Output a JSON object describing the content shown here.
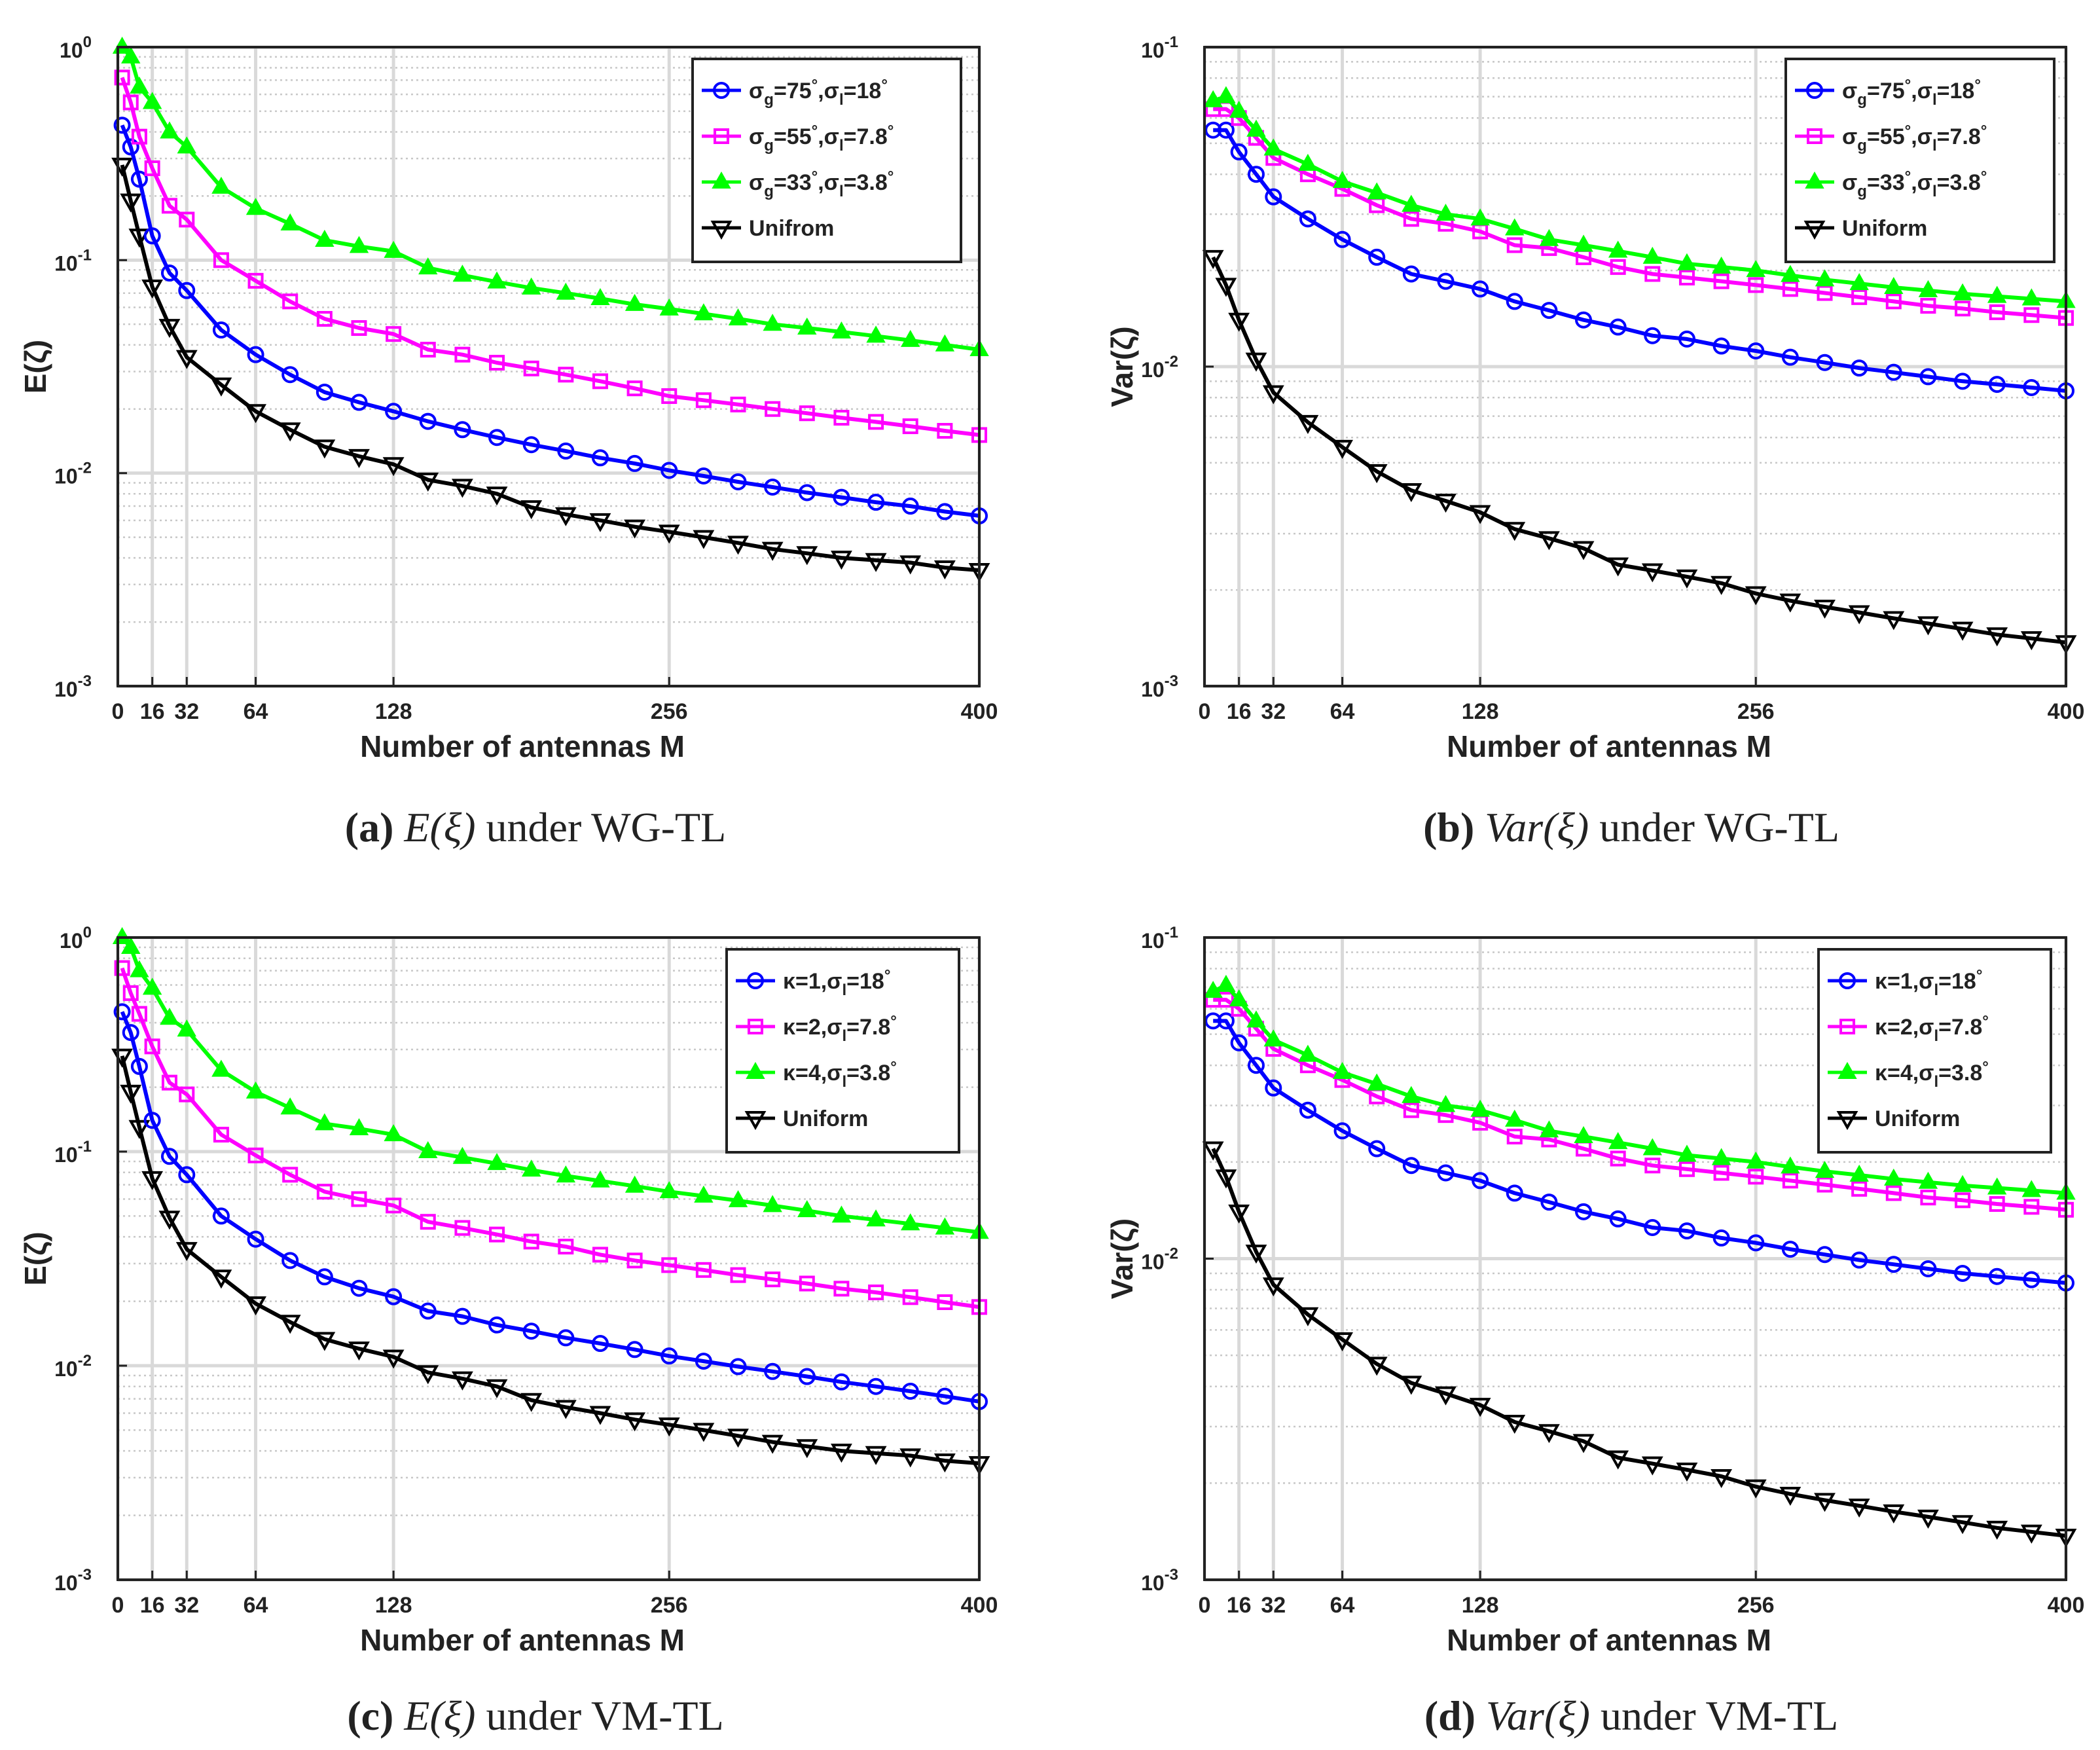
{
  "figure": {
    "captions": [
      {
        "letter": "(a)",
        "expr": "E(ξ)",
        "rest": " under WG-TL"
      },
      {
        "letter": "(b)",
        "expr": "Var(ξ)",
        "rest": " under WG-TL"
      },
      {
        "letter": "(c)",
        "expr": "E(ξ)",
        "rest": " under VM-TL"
      },
      {
        "letter": "(d)",
        "expr": "Var(ξ)",
        "rest": " under VM-TL"
      }
    ]
  },
  "chart_data": [
    {
      "id": "a",
      "type": "line",
      "title": "",
      "xlabel": "Number of antennas M",
      "ylabel": "E(ζ)",
      "yscale": "log",
      "xlim": [
        0,
        400
      ],
      "ylim": [
        0.001,
        1
      ],
      "xticks": [
        0,
        16,
        32,
        64,
        128,
        256,
        400
      ],
      "yticks": [
        {
          "base": "10",
          "exp": "-3"
        },
        {
          "base": "10",
          "exp": "-2"
        },
        {
          "base": "10",
          "exp": "-1"
        },
        {
          "base": "10",
          "exp": "0"
        }
      ],
      "grid": true,
      "legend_position": "top-right",
      "x": [
        2,
        6,
        10,
        16,
        24,
        32,
        48,
        64,
        80,
        96,
        112,
        128,
        144,
        160,
        176,
        192,
        208,
        224,
        240,
        256,
        272,
        288,
        304,
        320,
        336,
        352,
        368,
        384,
        400
      ],
      "series": [
        {
          "name": "σg=75°,σl=18°",
          "label": {
            "s1": "σ",
            "sub1": "g",
            "mid": "=75",
            "deg1": "°",
            "s2": ",σ",
            "sub2": "l",
            "end": "=18",
            "deg2": "°"
          },
          "color": "#0000ff",
          "marker": "circle",
          "values": [
            0.43,
            0.34,
            0.24,
            0.13,
            0.087,
            0.072,
            0.047,
            0.036,
            0.029,
            0.024,
            0.0215,
            0.0195,
            0.0175,
            0.016,
            0.0147,
            0.0136,
            0.0127,
            0.0118,
            0.0111,
            0.0103,
            0.0097,
            0.0091,
            0.0086,
            0.0081,
            0.0077,
            0.0073,
            0.007,
            0.0066,
            0.0063
          ]
        },
        {
          "name": "σg=55°,σl=7.8°",
          "label": {
            "s1": "σ",
            "sub1": "g",
            "mid": "=55",
            "deg1": "°",
            "s2": ",σ",
            "sub2": "l",
            "end": "=7.8",
            "deg2": "°"
          },
          "color": "#ff00ff",
          "marker": "square",
          "values": [
            0.72,
            0.55,
            0.38,
            0.27,
            0.18,
            0.155,
            0.1,
            0.08,
            0.064,
            0.053,
            0.048,
            0.045,
            0.038,
            0.036,
            0.033,
            0.031,
            0.029,
            0.027,
            0.025,
            0.023,
            0.022,
            0.021,
            0.02,
            0.0191,
            0.0182,
            0.0174,
            0.0166,
            0.0158,
            0.0151
          ]
        },
        {
          "name": "σg=33°,σl=3.8°",
          "label": {
            "s1": "σ",
            "sub1": "g",
            "mid": "=33",
            "deg1": "°",
            "s2": ",σ",
            "sub2": "l",
            "end": "=3.8",
            "deg2": "°"
          },
          "color": "#00ff00",
          "marker": "triangle-up",
          "values": [
            1.0,
            0.9,
            0.65,
            0.55,
            0.4,
            0.34,
            0.22,
            0.175,
            0.148,
            0.124,
            0.116,
            0.11,
            0.092,
            0.085,
            0.079,
            0.074,
            0.07,
            0.066,
            0.062,
            0.059,
            0.056,
            0.053,
            0.05,
            0.048,
            0.046,
            0.044,
            0.042,
            0.04,
            0.038
          ]
        },
        {
          "name": "Unifrom",
          "label": {
            "s1": "Unifrom",
            "sub1": "",
            "mid": "",
            "deg1": "",
            "s2": "",
            "sub2": "",
            "end": "",
            "deg2": ""
          },
          "color": "#000000",
          "marker": "triangle-down",
          "values": [
            0.28,
            0.19,
            0.13,
            0.075,
            0.049,
            0.035,
            0.026,
            0.0195,
            0.016,
            0.0133,
            0.012,
            0.011,
            0.0093,
            0.0087,
            0.008,
            0.0069,
            0.0064,
            0.006,
            0.0056,
            0.0053,
            0.005,
            0.0047,
            0.0044,
            0.0042,
            0.004,
            0.0039,
            0.0038,
            0.0036,
            0.0035
          ]
        }
      ]
    },
    {
      "id": "b",
      "type": "line",
      "title": "",
      "xlabel": "Number of antennas M",
      "ylabel": "Var(ζ)",
      "yscale": "log",
      "xlim": [
        0,
        400
      ],
      "ylim": [
        0.001,
        0.1
      ],
      "xticks": [
        0,
        16,
        32,
        64,
        128,
        256,
        400
      ],
      "yticks": [
        {
          "base": "10",
          "exp": "-3"
        },
        {
          "base": "10",
          "exp": "-2"
        },
        {
          "base": "10",
          "exp": "-1"
        }
      ],
      "grid": true,
      "legend_position": "top-right",
      "x": [
        4,
        10,
        16,
        24,
        32,
        48,
        64,
        80,
        96,
        112,
        128,
        144,
        160,
        176,
        192,
        208,
        224,
        240,
        256,
        272,
        288,
        304,
        320,
        336,
        352,
        368,
        384,
        400
      ],
      "series": [
        {
          "name": "σg=75°,σl=18°",
          "label": {
            "s1": "σ",
            "sub1": "g",
            "mid": "=75",
            "deg1": "°",
            "s2": ",σ",
            "sub2": "l",
            "end": "=18",
            "deg2": "°"
          },
          "color": "#0000ff",
          "marker": "circle",
          "values": [
            0.055,
            0.055,
            0.047,
            0.04,
            0.034,
            0.029,
            0.025,
            0.022,
            0.0195,
            0.0185,
            0.0175,
            0.016,
            0.015,
            0.014,
            0.0133,
            0.0125,
            0.0122,
            0.0116,
            0.0112,
            0.0107,
            0.0103,
            0.0099,
            0.0096,
            0.0093,
            0.009,
            0.0088,
            0.0086,
            0.0084
          ]
        },
        {
          "name": "σg=55°,σl=7.8°",
          "label": {
            "s1": "σ",
            "sub1": "g",
            "mid": "=55",
            "deg1": "°",
            "s2": ",σ",
            "sub2": "l",
            "end": "=7.8",
            "deg2": "°"
          },
          "color": "#ff00ff",
          "marker": "square",
          "values": [
            0.064,
            0.064,
            0.06,
            0.052,
            0.045,
            0.04,
            0.036,
            0.032,
            0.029,
            0.028,
            0.0265,
            0.024,
            0.0235,
            0.022,
            0.0205,
            0.0195,
            0.019,
            0.0185,
            0.018,
            0.0175,
            0.017,
            0.0165,
            0.016,
            0.0155,
            0.0152,
            0.0148,
            0.0145,
            0.0142
          ]
        },
        {
          "name": "σg=33°,σl=3.8°",
          "label": {
            "s1": "σ",
            "sub1": "g",
            "mid": "=33",
            "deg1": "°",
            "s2": ",σ",
            "sub2": "l",
            "end": "=3.8",
            "deg2": "°"
          },
          "color": "#00ff00",
          "marker": "triangle-up",
          "values": [
            0.068,
            0.07,
            0.063,
            0.055,
            0.048,
            0.043,
            0.038,
            0.035,
            0.032,
            0.03,
            0.029,
            0.027,
            0.025,
            0.024,
            0.023,
            0.022,
            0.021,
            0.0205,
            0.02,
            0.0193,
            0.0187,
            0.0182,
            0.0177,
            0.0173,
            0.0169,
            0.0166,
            0.0163,
            0.016
          ]
        },
        {
          "name": "Uniform",
          "label": {
            "s1": "Uniform",
            "sub1": "",
            "mid": "",
            "deg1": "",
            "s2": "",
            "sub2": "",
            "end": "",
            "deg2": ""
          },
          "color": "#000000",
          "marker": "triangle-down",
          "values": [
            0.022,
            0.018,
            0.014,
            0.0105,
            0.0083,
            0.0067,
            0.0056,
            0.0047,
            0.0041,
            0.0038,
            0.0035,
            0.0031,
            0.0029,
            0.0027,
            0.0024,
            0.0023,
            0.0022,
            0.0021,
            0.00195,
            0.00185,
            0.00177,
            0.0017,
            0.00163,
            0.00157,
            0.00151,
            0.00145,
            0.00141,
            0.00137
          ]
        }
      ]
    },
    {
      "id": "c",
      "type": "line",
      "title": "",
      "xlabel": "Number of antennas M",
      "ylabel": "E(ζ)",
      "yscale": "log",
      "xlim": [
        0,
        400
      ],
      "ylim": [
        0.001,
        1
      ],
      "xticks": [
        0,
        16,
        32,
        64,
        128,
        256,
        400
      ],
      "yticks": [
        {
          "base": "10",
          "exp": "-3"
        },
        {
          "base": "10",
          "exp": "-2"
        },
        {
          "base": "10",
          "exp": "-1"
        },
        {
          "base": "10",
          "exp": "0"
        }
      ],
      "grid": true,
      "legend_position": "top-right",
      "x": [
        2,
        6,
        10,
        16,
        24,
        32,
        48,
        64,
        80,
        96,
        112,
        128,
        144,
        160,
        176,
        192,
        208,
        224,
        240,
        256,
        272,
        288,
        304,
        320,
        336,
        352,
        368,
        384,
        400
      ],
      "series": [
        {
          "name": "κ=1,σl=18°",
          "label": {
            "s1": "κ",
            "sub1": "",
            "mid": "=1",
            "deg1": "",
            "s2": ",σ",
            "sub2": "l",
            "end": "=18",
            "deg2": "°"
          },
          "color": "#0000ff",
          "marker": "circle",
          "values": [
            0.45,
            0.36,
            0.25,
            0.14,
            0.095,
            0.078,
            0.05,
            0.039,
            0.031,
            0.026,
            0.023,
            0.021,
            0.018,
            0.017,
            0.0155,
            0.0145,
            0.0135,
            0.0127,
            0.0119,
            0.0111,
            0.0105,
            0.0099,
            0.0094,
            0.0089,
            0.0084,
            0.008,
            0.0076,
            0.0072,
            0.0068
          ]
        },
        {
          "name": "κ=2,σl=7.8°",
          "label": {
            "s1": "κ",
            "sub1": "",
            "mid": "=2",
            "deg1": "",
            "s2": ",σ",
            "sub2": "l",
            "end": "=7.8",
            "deg2": "°"
          },
          "color": "#ff00ff",
          "marker": "square",
          "values": [
            0.72,
            0.55,
            0.44,
            0.31,
            0.21,
            0.185,
            0.12,
            0.096,
            0.078,
            0.065,
            0.06,
            0.056,
            0.047,
            0.044,
            0.041,
            0.038,
            0.036,
            0.033,
            0.031,
            0.0295,
            0.028,
            0.0265,
            0.0253,
            0.0242,
            0.0229,
            0.022,
            0.0209,
            0.0198,
            0.0188
          ]
        },
        {
          "name": "κ=4,σl=3.8°",
          "label": {
            "s1": "κ",
            "sub1": "",
            "mid": "=4",
            "deg1": "",
            "s2": ",σ",
            "sub2": "l",
            "end": "=3.8",
            "deg2": "°"
          },
          "color": "#00ff00",
          "marker": "triangle-up",
          "values": [
            1.0,
            0.9,
            0.7,
            0.58,
            0.42,
            0.37,
            0.24,
            0.19,
            0.16,
            0.135,
            0.128,
            0.12,
            0.1,
            0.094,
            0.088,
            0.082,
            0.077,
            0.073,
            0.069,
            0.065,
            0.062,
            0.059,
            0.056,
            0.053,
            0.05,
            0.048,
            0.046,
            0.044,
            0.042
          ]
        },
        {
          "name": "Uniform",
          "label": {
            "s1": "Uniform",
            "sub1": "",
            "mid": "",
            "deg1": "",
            "s2": "",
            "sub2": "",
            "end": "",
            "deg2": ""
          },
          "color": "#000000",
          "marker": "triangle-down",
          "values": [
            0.28,
            0.19,
            0.13,
            0.075,
            0.049,
            0.035,
            0.026,
            0.0195,
            0.016,
            0.0133,
            0.012,
            0.011,
            0.0093,
            0.0087,
            0.008,
            0.0069,
            0.0064,
            0.006,
            0.0056,
            0.0053,
            0.005,
            0.0047,
            0.0044,
            0.0042,
            0.004,
            0.0039,
            0.0038,
            0.0036,
            0.0035
          ]
        }
      ]
    },
    {
      "id": "d",
      "type": "line",
      "title": "",
      "xlabel": "Number of antennas M",
      "ylabel": "Var(ζ)",
      "yscale": "log",
      "xlim": [
        0,
        400
      ],
      "ylim": [
        0.001,
        0.1
      ],
      "xticks": [
        0,
        16,
        32,
        64,
        128,
        256,
        400
      ],
      "yticks": [
        {
          "base": "10",
          "exp": "-3"
        },
        {
          "base": "10",
          "exp": "-2"
        },
        {
          "base": "10",
          "exp": "-1"
        }
      ],
      "grid": true,
      "legend_position": "top-right",
      "x": [
        4,
        10,
        16,
        24,
        32,
        48,
        64,
        80,
        96,
        112,
        128,
        144,
        160,
        176,
        192,
        208,
        224,
        240,
        256,
        272,
        288,
        304,
        320,
        336,
        352,
        368,
        384,
        400
      ],
      "series": [
        {
          "name": "κ=1,σl=18°",
          "label": {
            "s1": "κ",
            "sub1": "",
            "mid": "=1",
            "deg1": "",
            "s2": ",σ",
            "sub2": "l",
            "end": "=18",
            "deg2": "°"
          },
          "color": "#0000ff",
          "marker": "circle",
          "values": [
            0.055,
            0.055,
            0.047,
            0.04,
            0.034,
            0.029,
            0.025,
            0.022,
            0.0195,
            0.0185,
            0.0175,
            0.016,
            0.015,
            0.014,
            0.0133,
            0.0125,
            0.0122,
            0.0116,
            0.0112,
            0.0107,
            0.0103,
            0.0099,
            0.0096,
            0.0093,
            0.009,
            0.0088,
            0.0086,
            0.0084
          ]
        },
        {
          "name": "κ=2,σl=7.8°",
          "label": {
            "s1": "κ",
            "sub1": "",
            "mid": "=2",
            "deg1": "",
            "s2": ",σ",
            "sub2": "l",
            "end": "=7.8",
            "deg2": "°"
          },
          "color": "#ff00ff",
          "marker": "square",
          "values": [
            0.064,
            0.064,
            0.06,
            0.052,
            0.045,
            0.04,
            0.036,
            0.032,
            0.029,
            0.028,
            0.0265,
            0.024,
            0.0235,
            0.022,
            0.0205,
            0.0195,
            0.019,
            0.0185,
            0.018,
            0.0175,
            0.017,
            0.0165,
            0.016,
            0.0155,
            0.0152,
            0.0148,
            0.0145,
            0.0142
          ]
        },
        {
          "name": "κ=4,σl=3.8°",
          "label": {
            "s1": "κ",
            "sub1": "",
            "mid": "=4",
            "deg1": "",
            "s2": ",σ",
            "sub2": "l",
            "end": "=3.8",
            "deg2": "°"
          },
          "color": "#00ff00",
          "marker": "triangle-up",
          "values": [
            0.068,
            0.071,
            0.064,
            0.055,
            0.048,
            0.043,
            0.038,
            0.035,
            0.032,
            0.03,
            0.029,
            0.027,
            0.025,
            0.024,
            0.023,
            0.022,
            0.021,
            0.0205,
            0.02,
            0.0193,
            0.0187,
            0.0182,
            0.0177,
            0.0173,
            0.0169,
            0.0166,
            0.0163,
            0.016
          ]
        },
        {
          "name": "Uniform",
          "label": {
            "s1": "Uniform",
            "sub1": "",
            "mid": "",
            "deg1": "",
            "s2": "",
            "sub2": "",
            "end": "",
            "deg2": ""
          },
          "color": "#000000",
          "marker": "triangle-down",
          "values": [
            0.022,
            0.018,
            0.014,
            0.0105,
            0.0083,
            0.0067,
            0.0056,
            0.0047,
            0.0041,
            0.0038,
            0.0035,
            0.0031,
            0.0029,
            0.0027,
            0.0024,
            0.0023,
            0.0022,
            0.0021,
            0.00195,
            0.00185,
            0.00177,
            0.0017,
            0.00163,
            0.00157,
            0.00151,
            0.00145,
            0.00141,
            0.00137
          ]
        }
      ]
    }
  ]
}
